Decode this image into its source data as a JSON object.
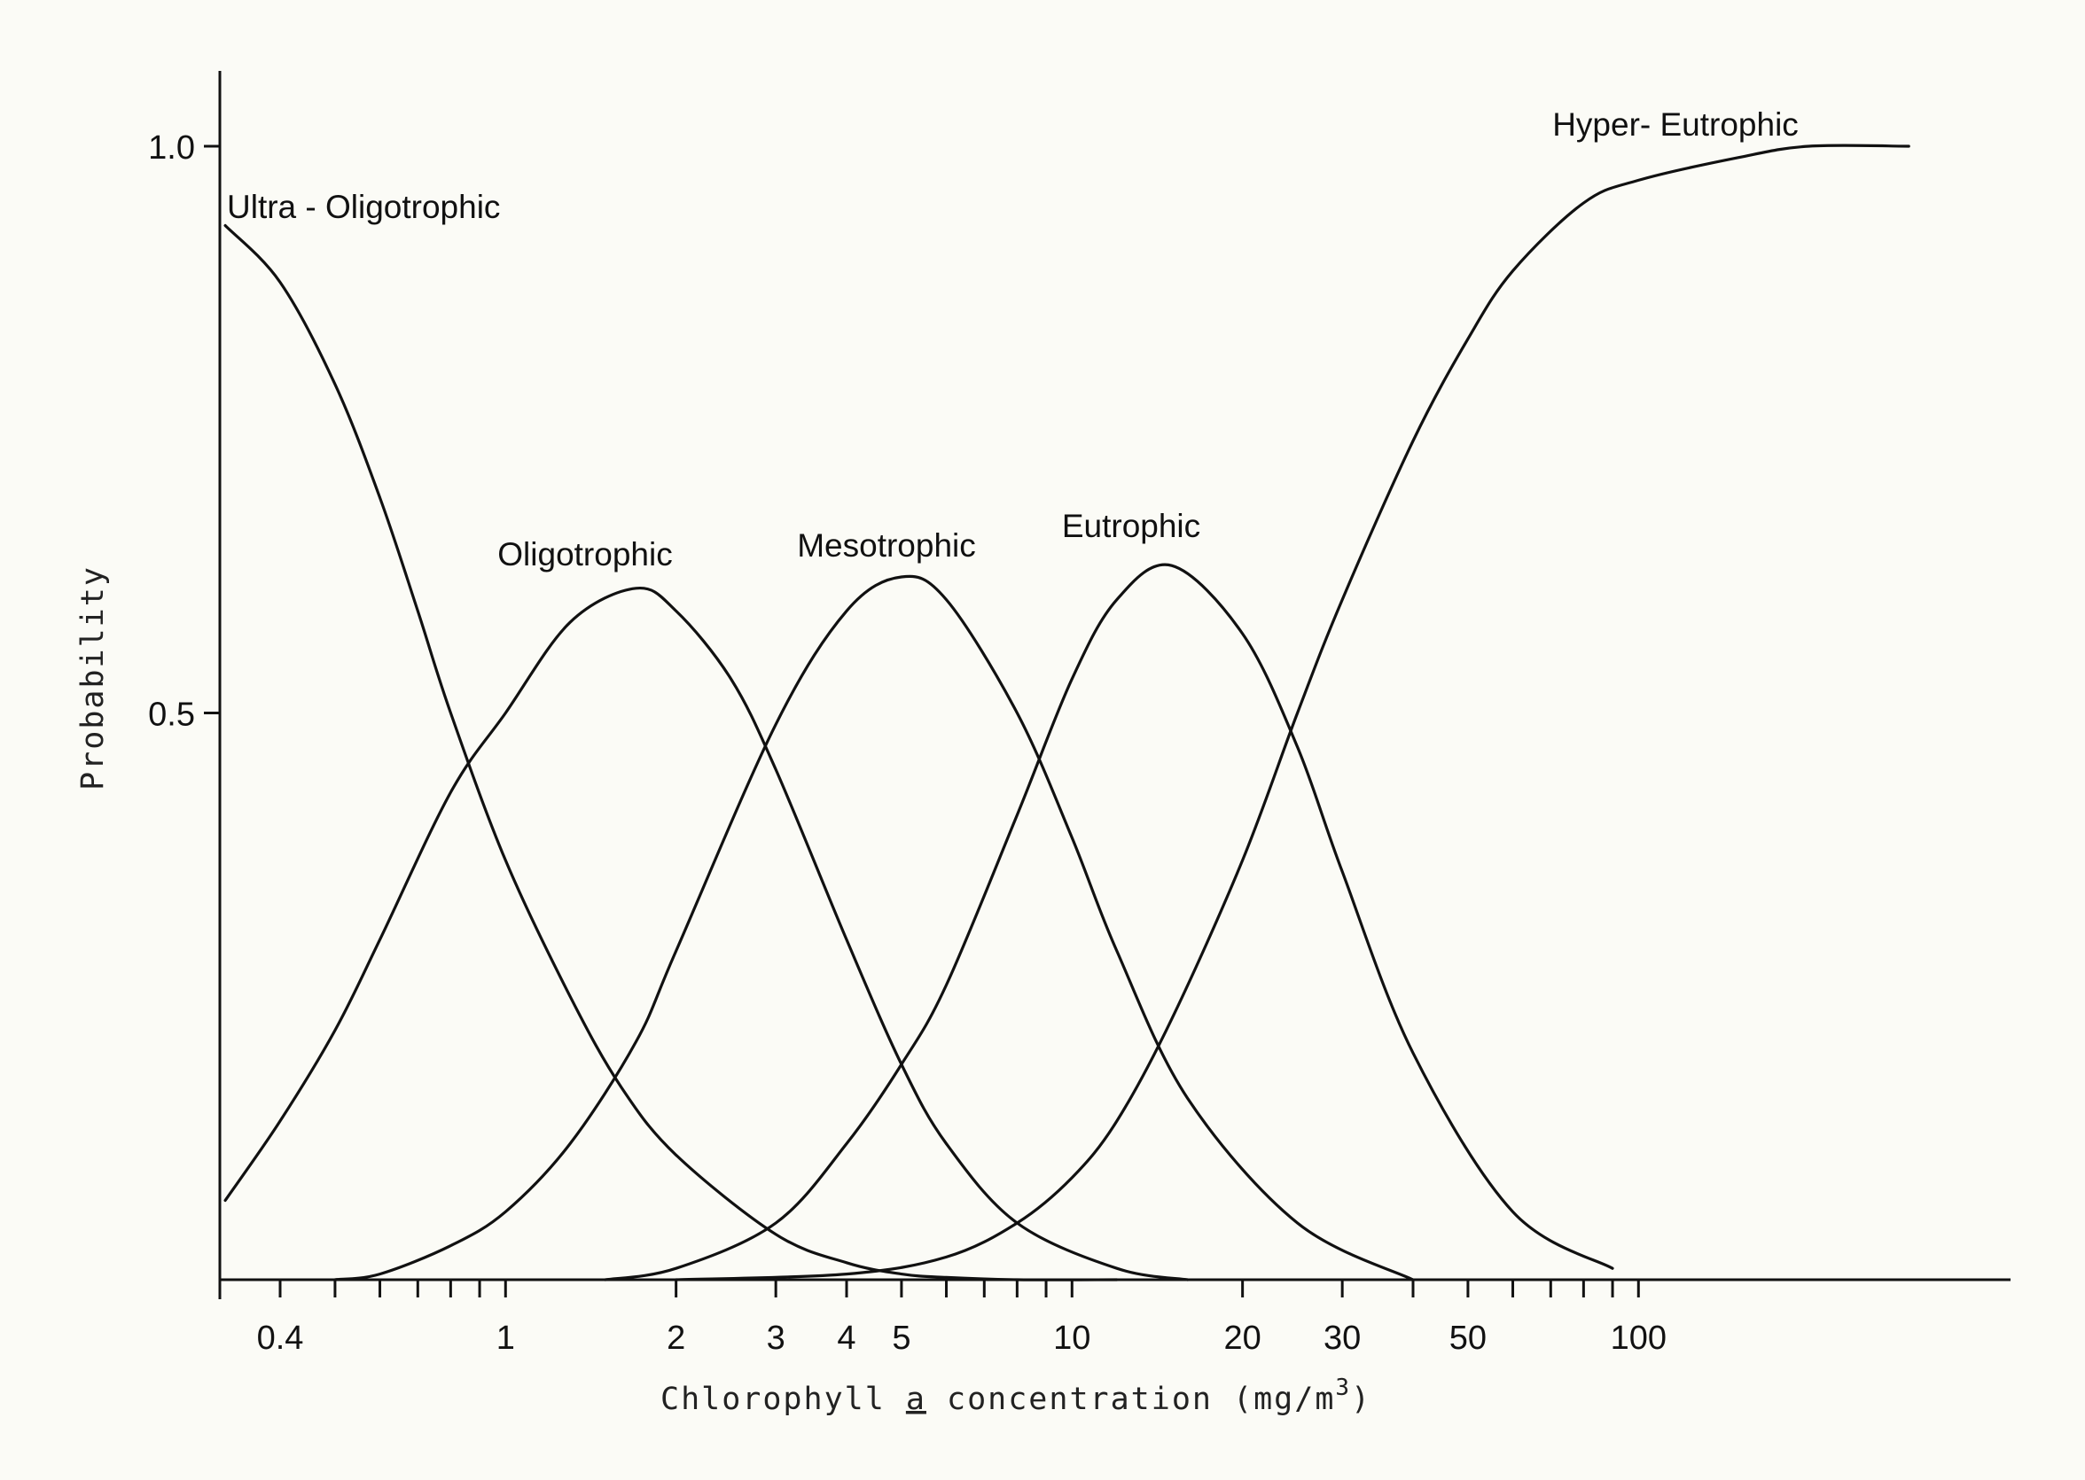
{
  "chart_data": {
    "type": "line",
    "title": "",
    "xlabel": {
      "prefix": "Chlorophyll ",
      "underlined": "a",
      "suffix": " concentration (mg/m",
      "superscript": "3",
      "close": ")"
    },
    "ylabel": "Probability",
    "x_scale": "log",
    "xlim": [
      0.32,
      400
    ],
    "ylim": [
      0,
      1.0
    ],
    "grid": false,
    "x_ticks": [
      {
        "value": 0.4,
        "label": "0.4"
      },
      {
        "value": 0.5,
        "label": ""
      },
      {
        "value": 0.6,
        "label": ""
      },
      {
        "value": 0.7,
        "label": ""
      },
      {
        "value": 0.8,
        "label": ""
      },
      {
        "value": 0.9,
        "label": ""
      },
      {
        "value": 1,
        "label": "1"
      },
      {
        "value": 2,
        "label": "2"
      },
      {
        "value": 3,
        "label": "3"
      },
      {
        "value": 4,
        "label": "4"
      },
      {
        "value": 5,
        "label": "5"
      },
      {
        "value": 6,
        "label": ""
      },
      {
        "value": 7,
        "label": ""
      },
      {
        "value": 8,
        "label": ""
      },
      {
        "value": 9,
        "label": ""
      },
      {
        "value": 10,
        "label": "10"
      },
      {
        "value": 20,
        "label": "20"
      },
      {
        "value": 30,
        "label": "30"
      },
      {
        "value": 40,
        "label": ""
      },
      {
        "value": 50,
        "label": "50"
      },
      {
        "value": 60,
        "label": ""
      },
      {
        "value": 70,
        "label": ""
      },
      {
        "value": 80,
        "label": ""
      },
      {
        "value": 90,
        "label": ""
      },
      {
        "value": 100,
        "label": "100"
      }
    ],
    "y_ticks": [
      {
        "value": 0.5,
        "label": "0.5"
      },
      {
        "value": 1.0,
        "label": "1.0"
      }
    ],
    "series": [
      {
        "name": "Ultra - Oligotrophic",
        "x": [
          0.32,
          0.4,
          0.5,
          0.6,
          0.7,
          0.8,
          1.0,
          1.3,
          1.6,
          2.0,
          3.0,
          4.0,
          5.0,
          6.0,
          8.0,
          12.0
        ],
        "y": [
          0.93,
          0.88,
          0.79,
          0.69,
          0.59,
          0.5,
          0.37,
          0.25,
          0.17,
          0.11,
          0.04,
          0.015,
          0.005,
          0.002,
          0.0,
          0.0
        ]
      },
      {
        "name": "Oligotrophic",
        "x": [
          0.32,
          0.4,
          0.5,
          0.6,
          0.8,
          1.0,
          1.3,
          1.7,
          2.0,
          2.5,
          3.0,
          4.0,
          5.0,
          6.0,
          8.0,
          12.0,
          16.0
        ],
        "y": [
          0.07,
          0.14,
          0.22,
          0.3,
          0.43,
          0.5,
          0.58,
          0.61,
          0.59,
          0.53,
          0.45,
          0.3,
          0.19,
          0.12,
          0.05,
          0.01,
          0.0
        ]
      },
      {
        "name": "Mesotrophic",
        "x": [
          0.5,
          0.6,
          0.8,
          1.0,
          1.3,
          1.7,
          2.0,
          3.0,
          4.0,
          5.0,
          6.0,
          8.0,
          10.0,
          12.0,
          16.0,
          25.0,
          40.0
        ],
        "y": [
          0.0,
          0.005,
          0.03,
          0.06,
          0.12,
          0.21,
          0.29,
          0.49,
          0.59,
          0.62,
          0.6,
          0.5,
          0.39,
          0.29,
          0.16,
          0.05,
          0.0
        ]
      },
      {
        "name": "Eutrophic",
        "x": [
          1.5,
          2.0,
          3.0,
          4.0,
          5.0,
          6.0,
          8.0,
          10.0,
          12.0,
          15.0,
          20.0,
          25.0,
          30.0,
          40.0,
          60.0,
          90.0
        ],
        "y": [
          0.0,
          0.01,
          0.05,
          0.12,
          0.19,
          0.26,
          0.41,
          0.53,
          0.6,
          0.63,
          0.57,
          0.47,
          0.36,
          0.2,
          0.06,
          0.01
        ]
      },
      {
        "name": "Hyper- Eutrophic",
        "x": [
          2.0,
          4.0,
          6.0,
          8.0,
          10.0,
          12.0,
          15.0,
          20.0,
          25.0,
          30.0,
          40.0,
          50.0,
          60.0,
          80.0,
          100.0,
          150.0,
          200.0,
          300.0
        ],
        "y": [
          0.0,
          0.005,
          0.02,
          0.05,
          0.09,
          0.14,
          0.23,
          0.37,
          0.5,
          0.6,
          0.74,
          0.83,
          0.89,
          0.95,
          0.97,
          0.99,
          1.0,
          1.0
        ]
      }
    ]
  }
}
